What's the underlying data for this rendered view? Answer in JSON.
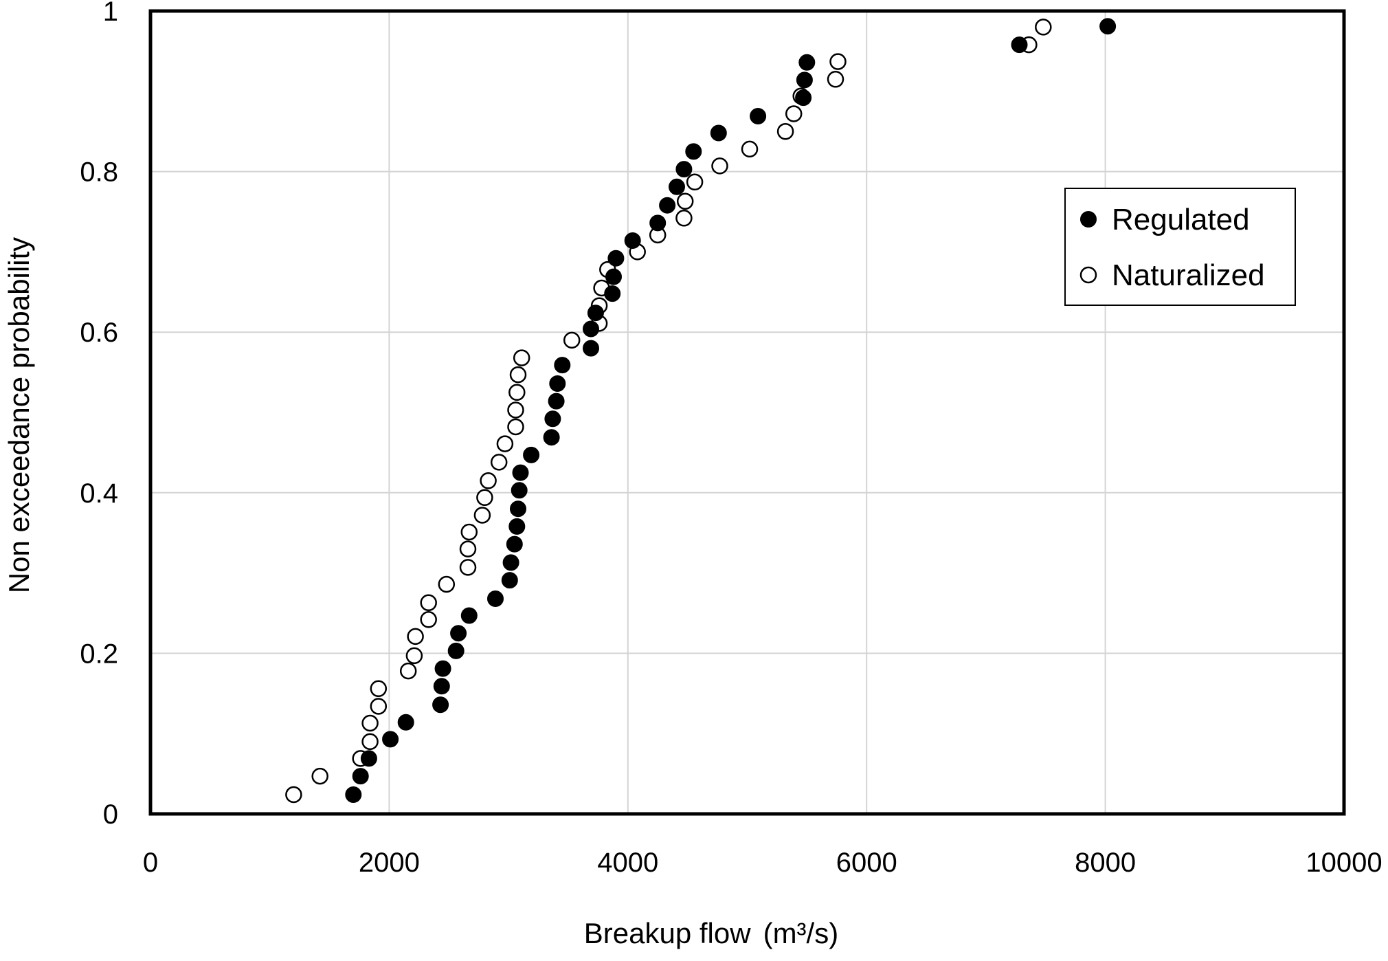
{
  "chart_data": {
    "type": "scatter",
    "title": "",
    "xlabel": "Breakup flow",
    "xlabel_unit": "(m³/s)",
    "ylabel": "Non exceedance probability",
    "xlim": [
      0,
      10000
    ],
    "ylim": [
      0,
      1
    ],
    "x_ticks": [
      0,
      2000,
      4000,
      6000,
      8000,
      10000
    ],
    "y_ticks": [
      0,
      0.2,
      0.4,
      0.6,
      0.8,
      1
    ],
    "y_tick_labels": [
      "0",
      "0.2",
      "0.4",
      "0.6",
      "0.8",
      "1"
    ],
    "grid": true,
    "legend_position": "right",
    "series": [
      {
        "name": "Regulated",
        "marker": "filled-circle",
        "color": "#000000",
        "points": [
          [
            1700,
            0.024
          ],
          [
            1760,
            0.047
          ],
          [
            1830,
            0.069
          ],
          [
            2010,
            0.093
          ],
          [
            2140,
            0.114
          ],
          [
            2430,
            0.136
          ],
          [
            2440,
            0.159
          ],
          [
            2450,
            0.181
          ],
          [
            2560,
            0.203
          ],
          [
            2580,
            0.225
          ],
          [
            2670,
            0.247
          ],
          [
            2890,
            0.268
          ],
          [
            3010,
            0.291
          ],
          [
            3020,
            0.313
          ],
          [
            3050,
            0.336
          ],
          [
            3070,
            0.358
          ],
          [
            3080,
            0.38
          ],
          [
            3090,
            0.403
          ],
          [
            3100,
            0.425
          ],
          [
            3190,
            0.447
          ],
          [
            3360,
            0.469
          ],
          [
            3370,
            0.492
          ],
          [
            3400,
            0.514
          ],
          [
            3410,
            0.536
          ],
          [
            3450,
            0.559
          ],
          [
            3690,
            0.58
          ],
          [
            3690,
            0.604
          ],
          [
            3730,
            0.624
          ],
          [
            3870,
            0.648
          ],
          [
            3880,
            0.669
          ],
          [
            3900,
            0.692
          ],
          [
            4040,
            0.714
          ],
          [
            4250,
            0.736
          ],
          [
            4330,
            0.758
          ],
          [
            4410,
            0.781
          ],
          [
            4470,
            0.803
          ],
          [
            4550,
            0.825
          ],
          [
            4760,
            0.848
          ],
          [
            5090,
            0.869
          ],
          [
            5470,
            0.892
          ],
          [
            5480,
            0.914
          ],
          [
            5500,
            0.936
          ],
          [
            7280,
            0.958
          ],
          [
            8020,
            0.981
          ]
        ]
      },
      {
        "name": "Naturalized",
        "marker": "open-circle",
        "color": "#ffffff",
        "points": [
          [
            1200,
            0.024
          ],
          [
            1420,
            0.047
          ],
          [
            1760,
            0.069
          ],
          [
            1840,
            0.09
          ],
          [
            1840,
            0.113
          ],
          [
            1910,
            0.134
          ],
          [
            1910,
            0.156
          ],
          [
            2160,
            0.178
          ],
          [
            2210,
            0.197
          ],
          [
            2220,
            0.221
          ],
          [
            2330,
            0.242
          ],
          [
            2330,
            0.263
          ],
          [
            2480,
            0.286
          ],
          [
            2660,
            0.307
          ],
          [
            2660,
            0.33
          ],
          [
            2670,
            0.351
          ],
          [
            2780,
            0.372
          ],
          [
            2800,
            0.394
          ],
          [
            2830,
            0.415
          ],
          [
            2920,
            0.438
          ],
          [
            2970,
            0.461
          ],
          [
            3060,
            0.482
          ],
          [
            3060,
            0.503
          ],
          [
            3070,
            0.525
          ],
          [
            3080,
            0.547
          ],
          [
            3110,
            0.568
          ],
          [
            3530,
            0.59
          ],
          [
            3760,
            0.611
          ],
          [
            3760,
            0.633
          ],
          [
            3780,
            0.655
          ],
          [
            3830,
            0.678
          ],
          [
            4080,
            0.7
          ],
          [
            4250,
            0.721
          ],
          [
            4470,
            0.742
          ],
          [
            4480,
            0.763
          ],
          [
            4560,
            0.787
          ],
          [
            4770,
            0.807
          ],
          [
            5020,
            0.828
          ],
          [
            5320,
            0.85
          ],
          [
            5390,
            0.872
          ],
          [
            5450,
            0.894
          ],
          [
            5740,
            0.915
          ],
          [
            5760,
            0.937
          ],
          [
            7360,
            0.958
          ],
          [
            7480,
            0.98
          ]
        ]
      }
    ]
  }
}
